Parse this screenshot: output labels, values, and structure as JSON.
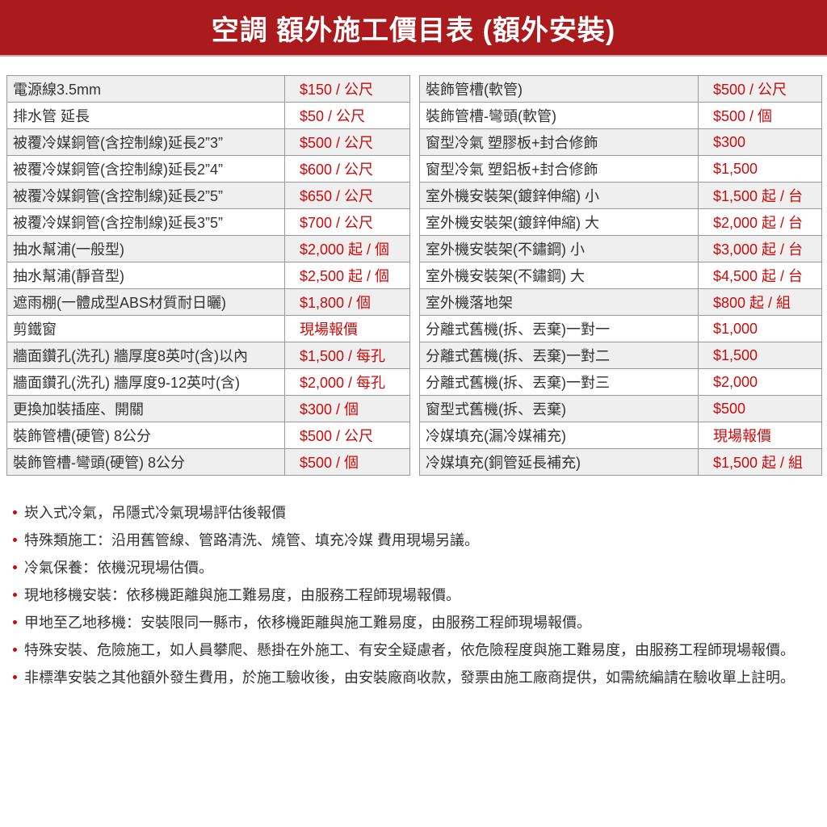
{
  "title": "空調 額外施工價目表 (額外安裝)",
  "colors": {
    "header": "#ab1a1c",
    "price": "#cc0a0a"
  },
  "left_table": [
    [
      "電源線3.5mm",
      "$150 / 公尺"
    ],
    [
      "排水管 延長",
      "$50 / 公尺"
    ],
    [
      "被覆冷媒銅管(含控制線)延長2”3”",
      "$500 / 公尺"
    ],
    [
      "被覆冷媒銅管(含控制線)延長2”4”",
      "$600 / 公尺"
    ],
    [
      "被覆冷媒銅管(含控制線)延長2”5”",
      "$650 / 公尺"
    ],
    [
      "被覆冷媒銅管(含控制線)延長3”5”",
      "$700 / 公尺"
    ],
    [
      "抽水幫浦(一般型)",
      "$2,000 起 / 個"
    ],
    [
      "抽水幫浦(靜音型)",
      "$2,500 起 / 個"
    ],
    [
      "遮雨棚(一體成型ABS材質耐日曬)",
      "$1,800 / 個"
    ],
    [
      "剪鐵窗",
      "現場報價"
    ],
    [
      "牆面鑽孔(洗孔) 牆厚度8英吋(含)以內",
      "$1,500 / 每孔"
    ],
    [
      "牆面鑽孔(洗孔) 牆厚度9-12英吋(含)",
      "$2,000 / 每孔"
    ],
    [
      "更換加裝插座、開關",
      "$300 / 個"
    ],
    [
      "裝飾管槽(硬管) 8公分",
      "$500 / 公尺"
    ],
    [
      "裝飾管槽-彎頭(硬管) 8公分",
      "$500 / 個"
    ]
  ],
  "right_table": [
    [
      "裝飾管槽(軟管)",
      "$500 / 公尺"
    ],
    [
      "裝飾管槽-彎頭(軟管)",
      "$500 / 個"
    ],
    [
      "窗型冷氣 塑膠板+封合修飾",
      "$300"
    ],
    [
      "窗型冷氣 塑鋁板+封合修飾",
      "$1,500"
    ],
    [
      "室外機安裝架(鍍鋅伸縮) 小",
      "$1,500 起 / 台"
    ],
    [
      "室外機安裝架(鍍鋅伸縮) 大",
      "$2,000 起 / 台"
    ],
    [
      "室外機安裝架(不鏽鋼) 小",
      "$3,000 起 / 台"
    ],
    [
      "室外機安裝架(不鏽鋼) 大",
      "$4,500 起 / 台"
    ],
    [
      "室外機落地架",
      "$800 起 / 組"
    ],
    [
      "分離式舊機(拆、丟棄)一對一",
      "$1,000"
    ],
    [
      "分離式舊機(拆、丟棄)一對二",
      "$1,500"
    ],
    [
      "分離式舊機(拆、丟棄)一對三",
      "$2,000"
    ],
    [
      "窗型式舊機(拆、丟棄)",
      "$500"
    ],
    [
      "冷媒填充(漏冷媒補充)",
      "現場報價"
    ],
    [
      "冷媒填充(銅管延長補充)",
      "$1,500 起 / 組"
    ]
  ],
  "notes": [
    "崁入式冷氣，吊隱式冷氣現場評估後報價",
    "特殊類施工：沿用舊管線、管路清洗、燒管、填充冷媒 費用現場另議。",
    "冷氣保養：依機況現場估價。",
    "現地移機安裝：依移機距離與施工難易度，由服務工程師現場報價。",
    "甲地至乙地移機：安裝限同一縣市，依移機距離與施工難易度，由服務工程師現場報價。",
    "特殊安裝、危險施工，如人員攀爬、懸掛在外施工、有安全疑慮者，依危險程度與施工難易度，由服務工程師現場報價。",
    "非標準安裝之其他額外發生費用，於施工驗收後，由安裝廠商收款，發票由施工廠商提供，如需統編請在驗收單上註明。"
  ]
}
